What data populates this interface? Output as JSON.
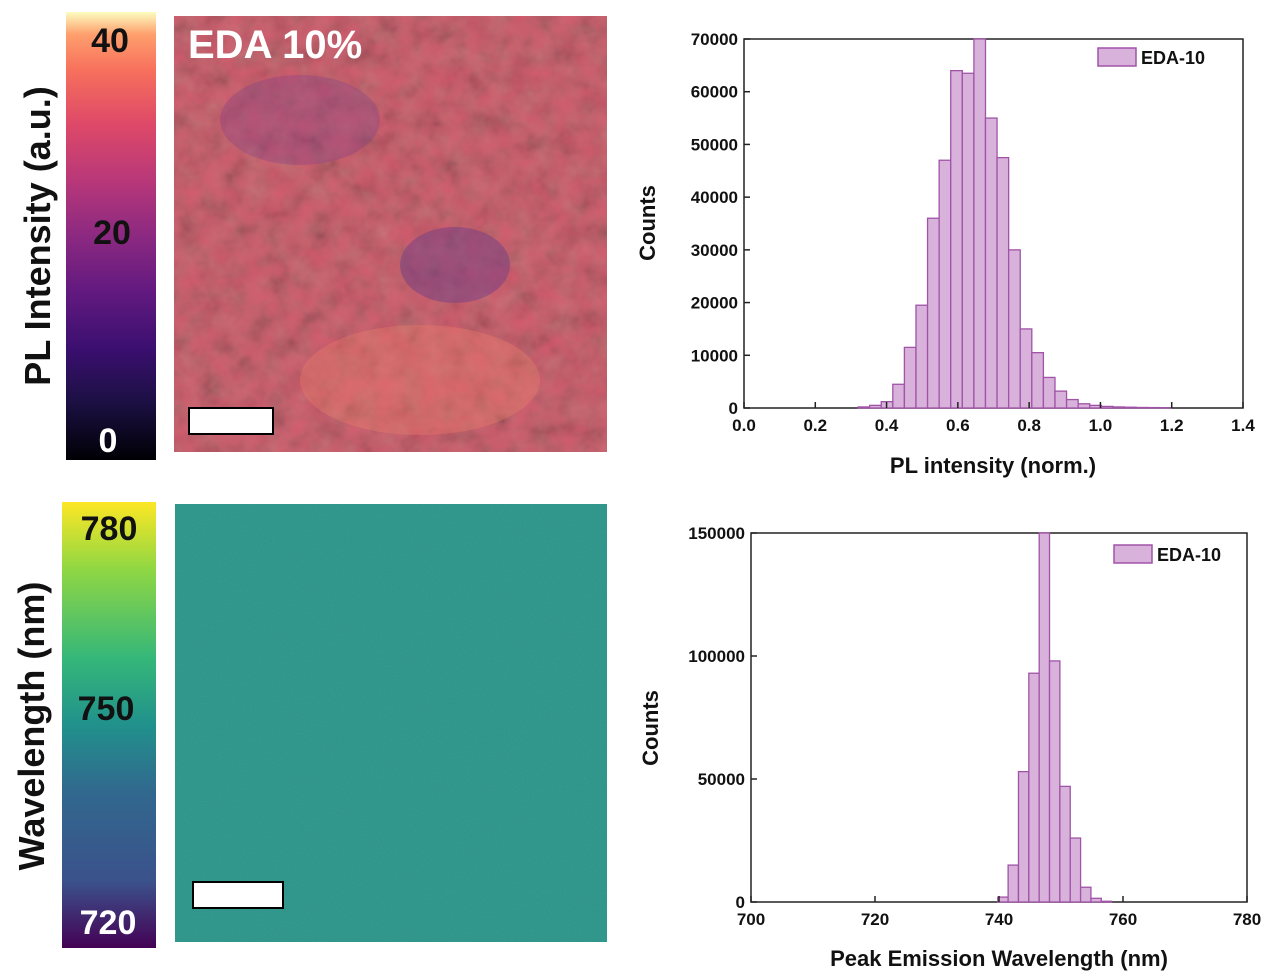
{
  "colors": {
    "bar_fill": "#d8b2db",
    "bar_stroke": "#a053a7",
    "axis": "#222222",
    "teal": "#2a9186"
  },
  "panels": {
    "pl_colorbar": {
      "label": "PL Intensity (a.u.)",
      "ticks": [
        "40",
        "20",
        "0"
      ],
      "colormap": "magma"
    },
    "pl_map": {
      "title": "EDA 10%"
    },
    "wl_colorbar": {
      "label": "Wavelength (nm)",
      "ticks": [
        "780",
        "750",
        "720"
      ],
      "colormap": "viridis"
    },
    "wl_map": {
      "title": ""
    }
  },
  "chart_data": [
    {
      "type": "bar",
      "xlabel": "PL intensity (norm.)",
      "ylabel": "Counts",
      "xlim": [
        0.0,
        1.4
      ],
      "ylim": [
        0,
        70000
      ],
      "xticks": [
        "0.0",
        "0.2",
        "0.4",
        "0.6",
        "0.8",
        "1.0",
        "1.2",
        "1.4"
      ],
      "yticks": [
        "0",
        "10000",
        "20000",
        "30000",
        "40000",
        "50000",
        "60000",
        "70000"
      ],
      "legend_position": "top-right",
      "bin_width": 0.0325,
      "series": [
        {
          "name": "EDA-10",
          "bin_starts": [
            0.32,
            0.3525,
            0.385,
            0.4175,
            0.45,
            0.4825,
            0.515,
            0.5475,
            0.58,
            0.6125,
            0.645,
            0.6775,
            0.71,
            0.7425,
            0.775,
            0.8075,
            0.84,
            0.8725,
            0.905,
            0.9375,
            0.97,
            1.0025,
            1.035,
            1.0675,
            1.1,
            1.1325,
            1.165
          ],
          "values": [
            200,
            500,
            1200,
            4500,
            11500,
            19500,
            36000,
            47000,
            64000,
            63500,
            70000,
            55000,
            47500,
            30000,
            15000,
            10500,
            5800,
            3200,
            1600,
            800,
            500,
            300,
            200,
            150,
            100,
            80,
            50
          ]
        }
      ]
    },
    {
      "type": "bar",
      "xlabel": "Peak Emission Wavelength (nm)",
      "ylabel": "Counts",
      "xlim": [
        700,
        780
      ],
      "ylim": [
        0,
        150000
      ],
      "xticks": [
        "700",
        "720",
        "740",
        "760",
        "780"
      ],
      "yticks": [
        "0",
        "50000",
        "100000",
        "150000"
      ],
      "legend_position": "top-right",
      "bin_width": 1.67,
      "series": [
        {
          "name": "EDA-10",
          "bin_starts": [
            739.8,
            741.47,
            743.14,
            744.81,
            746.48,
            748.15,
            749.82,
            751.49,
            753.16,
            754.83,
            756.5
          ],
          "values": [
            2000,
            15000,
            53000,
            93000,
            150000,
            98000,
            47000,
            26000,
            6000,
            1500,
            300
          ]
        }
      ]
    }
  ]
}
